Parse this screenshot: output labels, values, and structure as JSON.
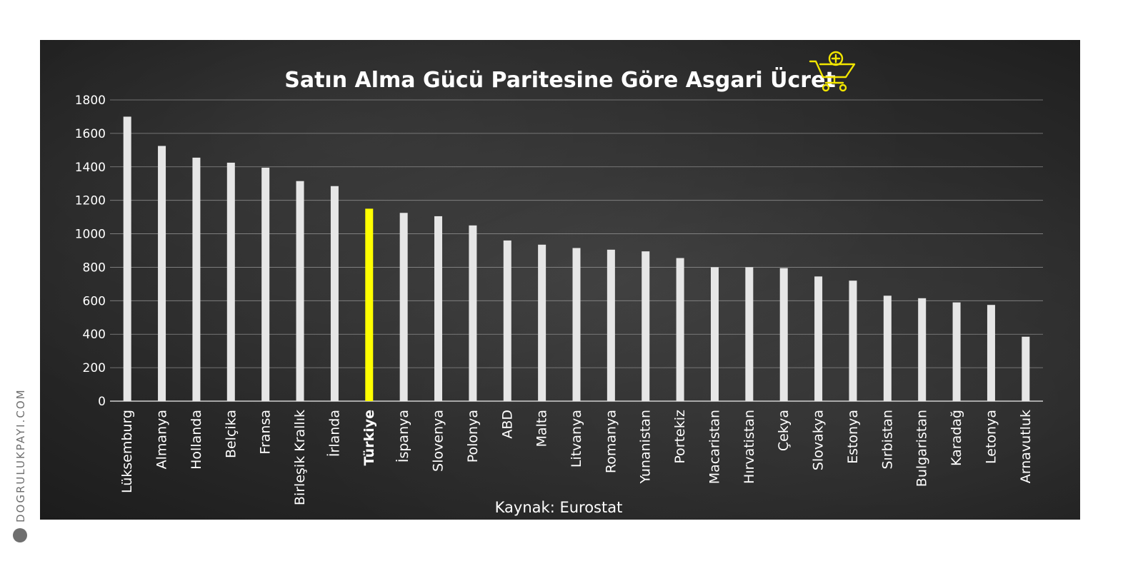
{
  "brand": {
    "text": "DOGRULUKPAYI.COM"
  },
  "chart_data": {
    "type": "bar",
    "title": "Satın Alma Gücü Paritesine Göre Asgari Ücret",
    "source": "Kaynak: Eurostat",
    "xlabel": "",
    "ylabel": "",
    "ylim": [
      0,
      1800
    ],
    "yticks": [
      0,
      200,
      400,
      600,
      800,
      1000,
      1200,
      1400,
      1600,
      1800
    ],
    "grid": true,
    "highlight_category": "Türkiye",
    "colors": {
      "bar": "#e6e6e6",
      "highlight": "#ffff00",
      "grid": "#8a8a8a",
      "text": "#ffffff",
      "icon": "#f2e600"
    },
    "icon": "shopping-cart-plus-icon",
    "categories": [
      "Lüksemburg",
      "Almanya",
      "Hollanda",
      "Belçika",
      "Fransa",
      "Birleşik Krallık",
      "İrlanda",
      "Türkiye",
      "İspanya",
      "Slovenya",
      "Polonya",
      "ABD",
      "Malta",
      "Litvanya",
      "Romanya",
      "Yunanistan",
      "Portekiz",
      "Macaristan",
      "Hırvatistan",
      "Çekya",
      "Slovakya",
      "Estonya",
      "Sırbistan",
      "Bulgaristan",
      "Karadağ",
      "Letonya",
      "Arnavutluk"
    ],
    "values": [
      1700,
      1525,
      1455,
      1425,
      1395,
      1315,
      1285,
      1150,
      1125,
      1105,
      1050,
      960,
      935,
      915,
      905,
      895,
      855,
      800,
      800,
      795,
      745,
      720,
      630,
      615,
      590,
      575,
      385
    ]
  }
}
